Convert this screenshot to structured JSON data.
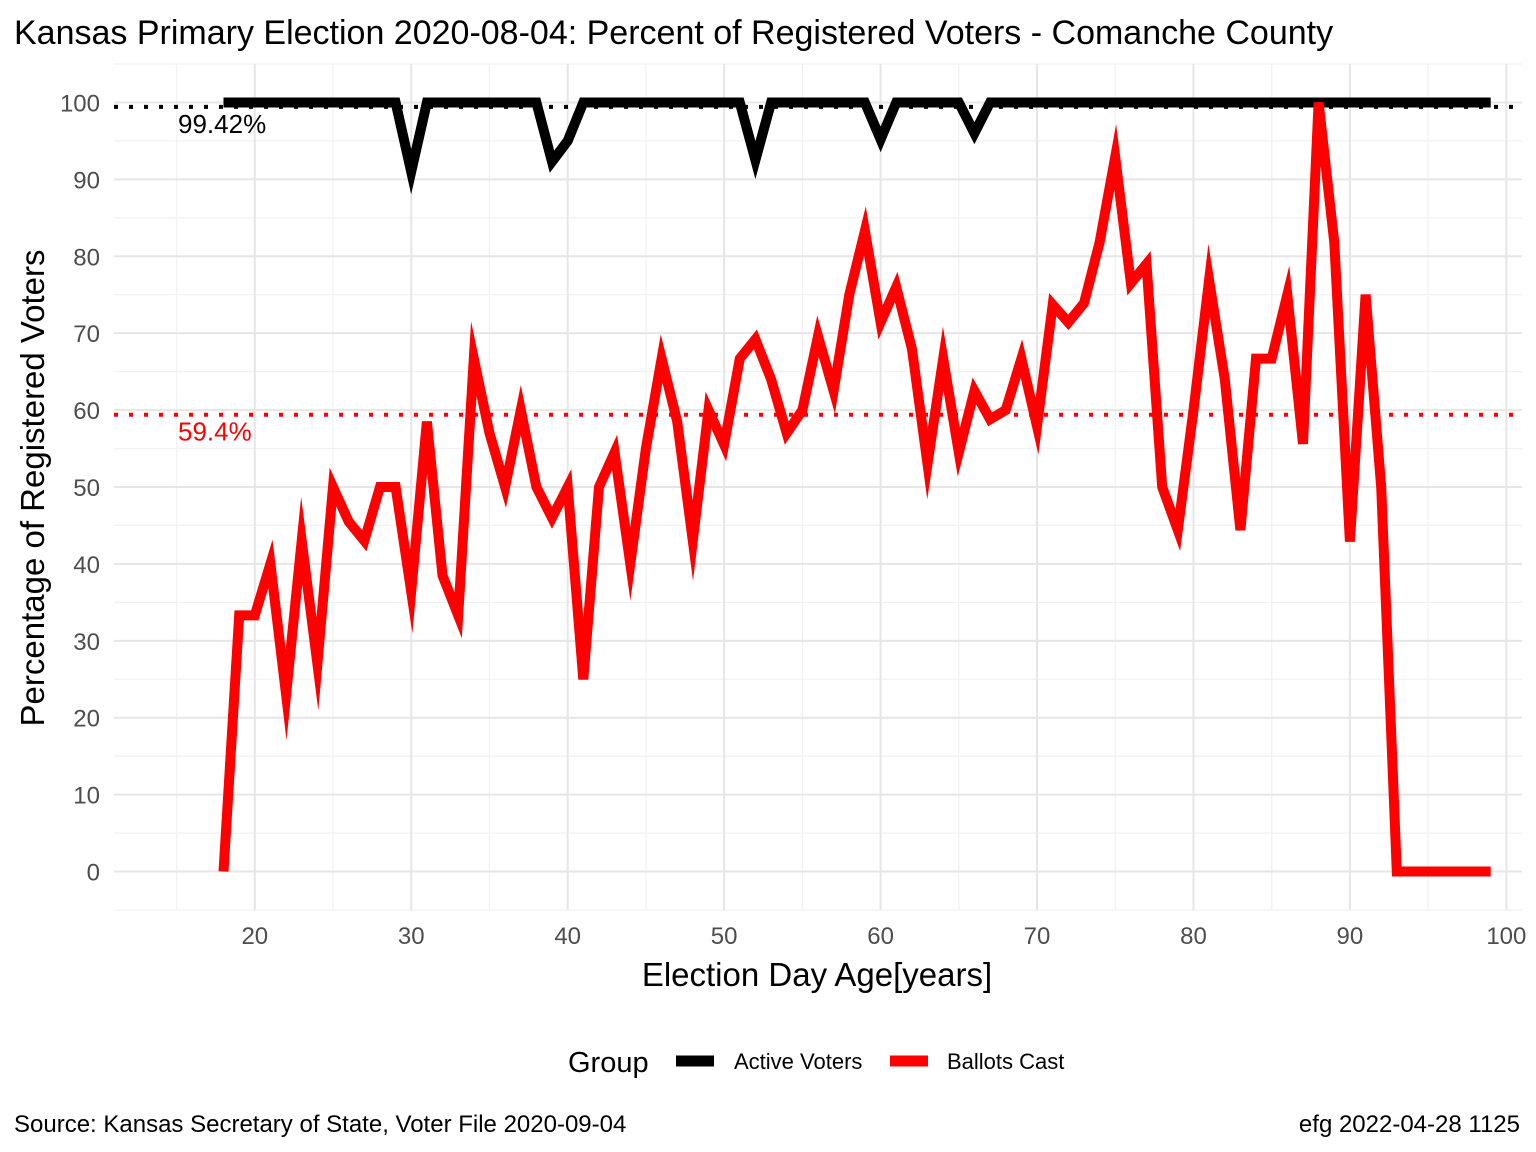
{
  "chart_data": {
    "type": "line",
    "title": "Kansas Primary Election 2020-08-04:  Percent of Registered Voters - Comanche County",
    "xlabel": "Election Day Age[years]",
    "ylabel": "Percentage of Registered Voters",
    "xlim": [
      11,
      101
    ],
    "ylim": [
      -5,
      105
    ],
    "x_ticks": [
      20,
      30,
      40,
      50,
      60,
      70,
      80,
      90,
      100
    ],
    "y_ticks": [
      0,
      10,
      20,
      30,
      40,
      50,
      60,
      70,
      80,
      90,
      100
    ],
    "grid": true,
    "legend": {
      "title": "Group",
      "position": "bottom",
      "entries": [
        {
          "label": "Active Voters",
          "color": "#000000"
        },
        {
          "label": "Ballots Cast",
          "color": "#ff0000"
        }
      ]
    },
    "reference_lines": [
      {
        "value": 99.42,
        "label": "99.42%",
        "color": "#000000",
        "style": "dotted"
      },
      {
        "value": 59.4,
        "label": "59.4%",
        "color": "#ff0000",
        "style": "dotted"
      }
    ],
    "series": [
      {
        "name": "Active Voters",
        "color": "#000000",
        "points": [
          [
            18,
            100
          ],
          [
            19,
            100
          ],
          [
            20,
            100
          ],
          [
            21,
            100
          ],
          [
            22,
            100
          ],
          [
            23,
            100
          ],
          [
            24,
            100
          ],
          [
            25,
            100
          ],
          [
            26,
            100
          ],
          [
            27,
            100
          ],
          [
            28,
            100
          ],
          [
            29,
            100
          ],
          [
            30,
            91
          ],
          [
            31,
            100
          ],
          [
            32,
            100
          ],
          [
            33,
            100
          ],
          [
            34,
            100
          ],
          [
            35,
            100
          ],
          [
            36,
            100
          ],
          [
            37,
            100
          ],
          [
            38,
            100
          ],
          [
            39,
            92.3
          ],
          [
            40,
            95
          ],
          [
            41,
            100
          ],
          [
            42,
            100
          ],
          [
            43,
            100
          ],
          [
            44,
            100
          ],
          [
            45,
            100
          ],
          [
            46,
            100
          ],
          [
            47,
            100
          ],
          [
            48,
            100
          ],
          [
            49,
            100
          ],
          [
            50,
            100
          ],
          [
            51,
            100
          ],
          [
            52,
            92.5
          ],
          [
            53,
            100
          ],
          [
            54,
            100
          ],
          [
            55,
            100
          ],
          [
            56,
            100
          ],
          [
            57,
            100
          ],
          [
            58,
            100
          ],
          [
            59,
            100
          ],
          [
            60,
            95.2
          ],
          [
            61,
            100
          ],
          [
            62,
            100
          ],
          [
            63,
            100
          ],
          [
            64,
            100
          ],
          [
            65,
            100
          ],
          [
            66,
            96
          ],
          [
            67,
            100
          ],
          [
            68,
            100
          ],
          [
            69,
            100
          ],
          [
            70,
            100
          ],
          [
            71,
            100
          ],
          [
            72,
            100
          ],
          [
            73,
            100
          ],
          [
            74,
            100
          ],
          [
            75,
            100
          ],
          [
            76,
            100
          ],
          [
            77,
            100
          ],
          [
            78,
            100
          ],
          [
            79,
            100
          ],
          [
            80,
            100
          ],
          [
            81,
            100
          ],
          [
            82,
            100
          ],
          [
            83,
            100
          ],
          [
            84,
            100
          ],
          [
            85,
            100
          ],
          [
            86,
            100
          ],
          [
            87,
            100
          ],
          [
            88,
            100
          ],
          [
            89,
            100
          ],
          [
            90,
            100
          ],
          [
            91,
            100
          ],
          [
            92,
            100
          ],
          [
            93,
            100
          ],
          [
            94,
            100
          ],
          [
            95,
            100
          ],
          [
            96,
            100
          ],
          [
            97,
            100
          ],
          [
            98,
            100
          ],
          [
            99,
            100
          ]
        ]
      },
      {
        "name": "Ballots Cast",
        "color": "#ff0000",
        "points": [
          [
            18,
            0
          ],
          [
            19,
            33.3
          ],
          [
            20,
            33.3
          ],
          [
            21,
            40
          ],
          [
            22,
            23
          ],
          [
            23,
            43
          ],
          [
            24,
            27
          ],
          [
            25,
            50
          ],
          [
            26,
            45.5
          ],
          [
            27,
            43
          ],
          [
            28,
            50
          ],
          [
            29,
            50
          ],
          [
            30,
            36.4
          ],
          [
            31,
            58.5
          ],
          [
            32,
            38.5
          ],
          [
            33,
            33.3
          ],
          [
            34,
            66.7
          ],
          [
            35,
            57
          ],
          [
            36,
            50
          ],
          [
            37,
            60
          ],
          [
            38,
            50
          ],
          [
            39,
            46
          ],
          [
            40,
            50
          ],
          [
            41,
            25
          ],
          [
            42,
            50
          ],
          [
            43,
            54.5
          ],
          [
            44,
            40
          ],
          [
            45,
            55
          ],
          [
            46,
            66.7
          ],
          [
            47,
            58.5
          ],
          [
            48,
            43
          ],
          [
            49,
            60
          ],
          [
            50,
            55.5
          ],
          [
            51,
            66.7
          ],
          [
            52,
            69.2
          ],
          [
            53,
            64
          ],
          [
            54,
            57
          ],
          [
            55,
            60
          ],
          [
            56,
            69.6
          ],
          [
            57,
            62.5
          ],
          [
            58,
            75
          ],
          [
            59,
            83.3
          ],
          [
            60,
            71.4
          ],
          [
            61,
            76
          ],
          [
            62,
            68
          ],
          [
            63,
            53
          ],
          [
            64,
            66.7
          ],
          [
            65,
            54.5
          ],
          [
            66,
            62.5
          ],
          [
            67,
            58.8
          ],
          [
            68,
            60
          ],
          [
            69,
            66.7
          ],
          [
            70,
            57.9
          ],
          [
            71,
            73.7
          ],
          [
            72,
            71.4
          ],
          [
            73,
            73.9
          ],
          [
            74,
            81.8
          ],
          [
            75,
            92.9
          ],
          [
            76,
            76.5
          ],
          [
            77,
            79
          ],
          [
            78,
            50
          ],
          [
            79,
            44.4
          ],
          [
            80,
            60
          ],
          [
            81,
            76.9
          ],
          [
            82,
            64
          ],
          [
            83,
            44.4
          ],
          [
            84,
            66.7
          ],
          [
            85,
            66.7
          ],
          [
            86,
            75
          ],
          [
            87,
            55.6
          ],
          [
            88,
            100
          ],
          [
            89,
            81.8
          ],
          [
            90,
            42.9
          ],
          [
            91,
            75
          ],
          [
            92,
            50
          ],
          [
            93,
            0
          ],
          [
            94,
            0
          ],
          [
            95,
            0
          ],
          [
            96,
            0
          ],
          [
            97,
            0
          ],
          [
            98,
            0
          ],
          [
            99,
            0
          ]
        ]
      }
    ]
  },
  "footer": {
    "source": "Source:  Kansas Secretary of State, Voter File  2020-09-04",
    "credit": "efg 2022-04-28 1125"
  }
}
